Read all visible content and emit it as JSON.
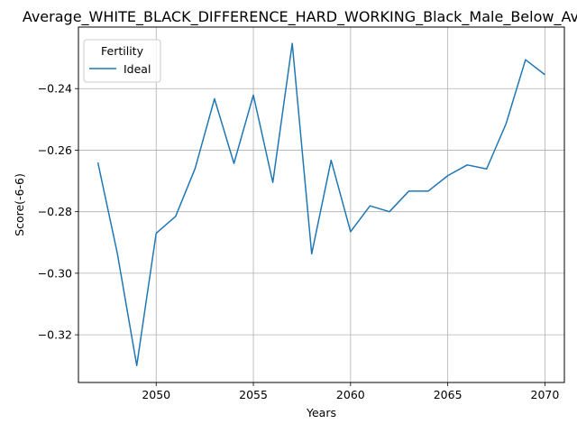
{
  "chart_data": {
    "type": "line",
    "title": "Average_WHITE_BLACK_DIFFERENCE_HARD_WORKING_Black_Male_Below_Average",
    "xlabel": "Years",
    "ylabel": "Score(-6-6)",
    "xlim": [
      2046,
      2071
    ],
    "ylim": [
      -0.3355,
      -0.22
    ],
    "xticks": [
      2050,
      2055,
      2060,
      2065,
      2070
    ],
    "yticks": [
      -0.32,
      -0.3,
      -0.28,
      -0.26,
      -0.24
    ],
    "grid": true,
    "legend": {
      "title": "Fertility",
      "position": "top-left"
    },
    "series": [
      {
        "name": "Ideal",
        "color": "#1f77b4",
        "x": [
          2047,
          2048,
          2049,
          2050,
          2051,
          2052,
          2053,
          2054,
          2055,
          2056,
          2057,
          2058,
          2059,
          2060,
          2061,
          2062,
          2063,
          2064,
          2065,
          2066,
          2067,
          2068,
          2069,
          2070
        ],
        "y": [
          -0.264,
          -0.2935,
          -0.33,
          -0.287,
          -0.2815,
          -0.266,
          -0.2433,
          -0.2643,
          -0.2421,
          -0.2705,
          -0.2253,
          -0.2937,
          -0.2633,
          -0.2865,
          -0.2781,
          -0.28,
          -0.2733,
          -0.2733,
          -0.2683,
          -0.2648,
          -0.2661,
          -0.2514,
          -0.2306,
          -0.2355
        ]
      }
    ]
  }
}
